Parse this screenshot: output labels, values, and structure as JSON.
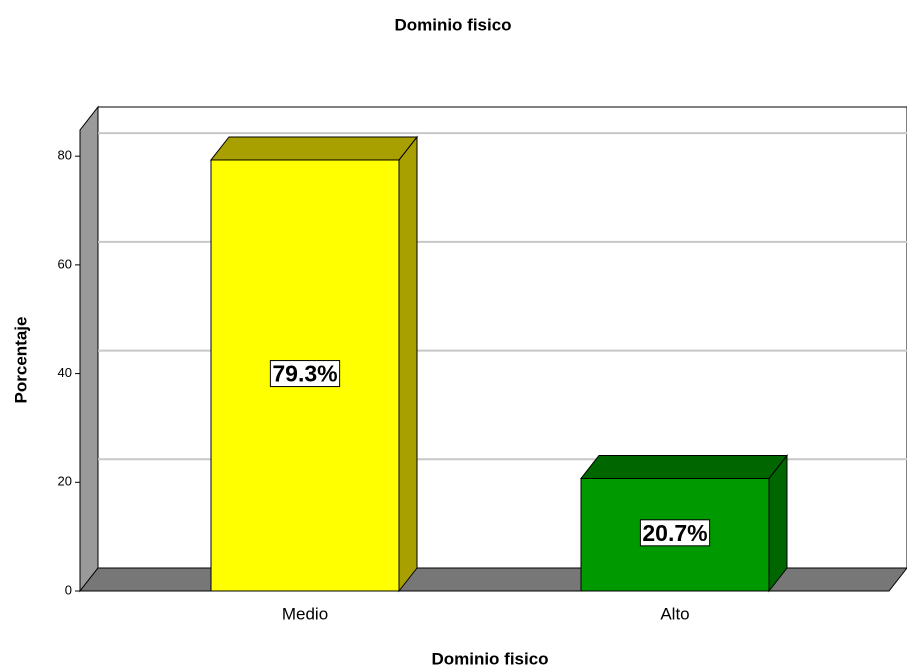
{
  "chart_data": {
    "type": "bar3d",
    "title": "Dominio fisico",
    "x_label": "Dominio fisico",
    "y_label": "Porcentaje",
    "categories": [
      "Medio",
      "Alto"
    ],
    "values": [
      79.3,
      20.7
    ],
    "value_labels": [
      "79.3%",
      "20.7%"
    ],
    "colors": [
      "#ffff00",
      "#009900"
    ],
    "side_colors": [
      "#a8a000",
      "#006600"
    ],
    "ylim": [
      0,
      85
    ],
    "yticks": [
      0,
      20,
      40,
      60,
      80
    ],
    "grid": true
  }
}
